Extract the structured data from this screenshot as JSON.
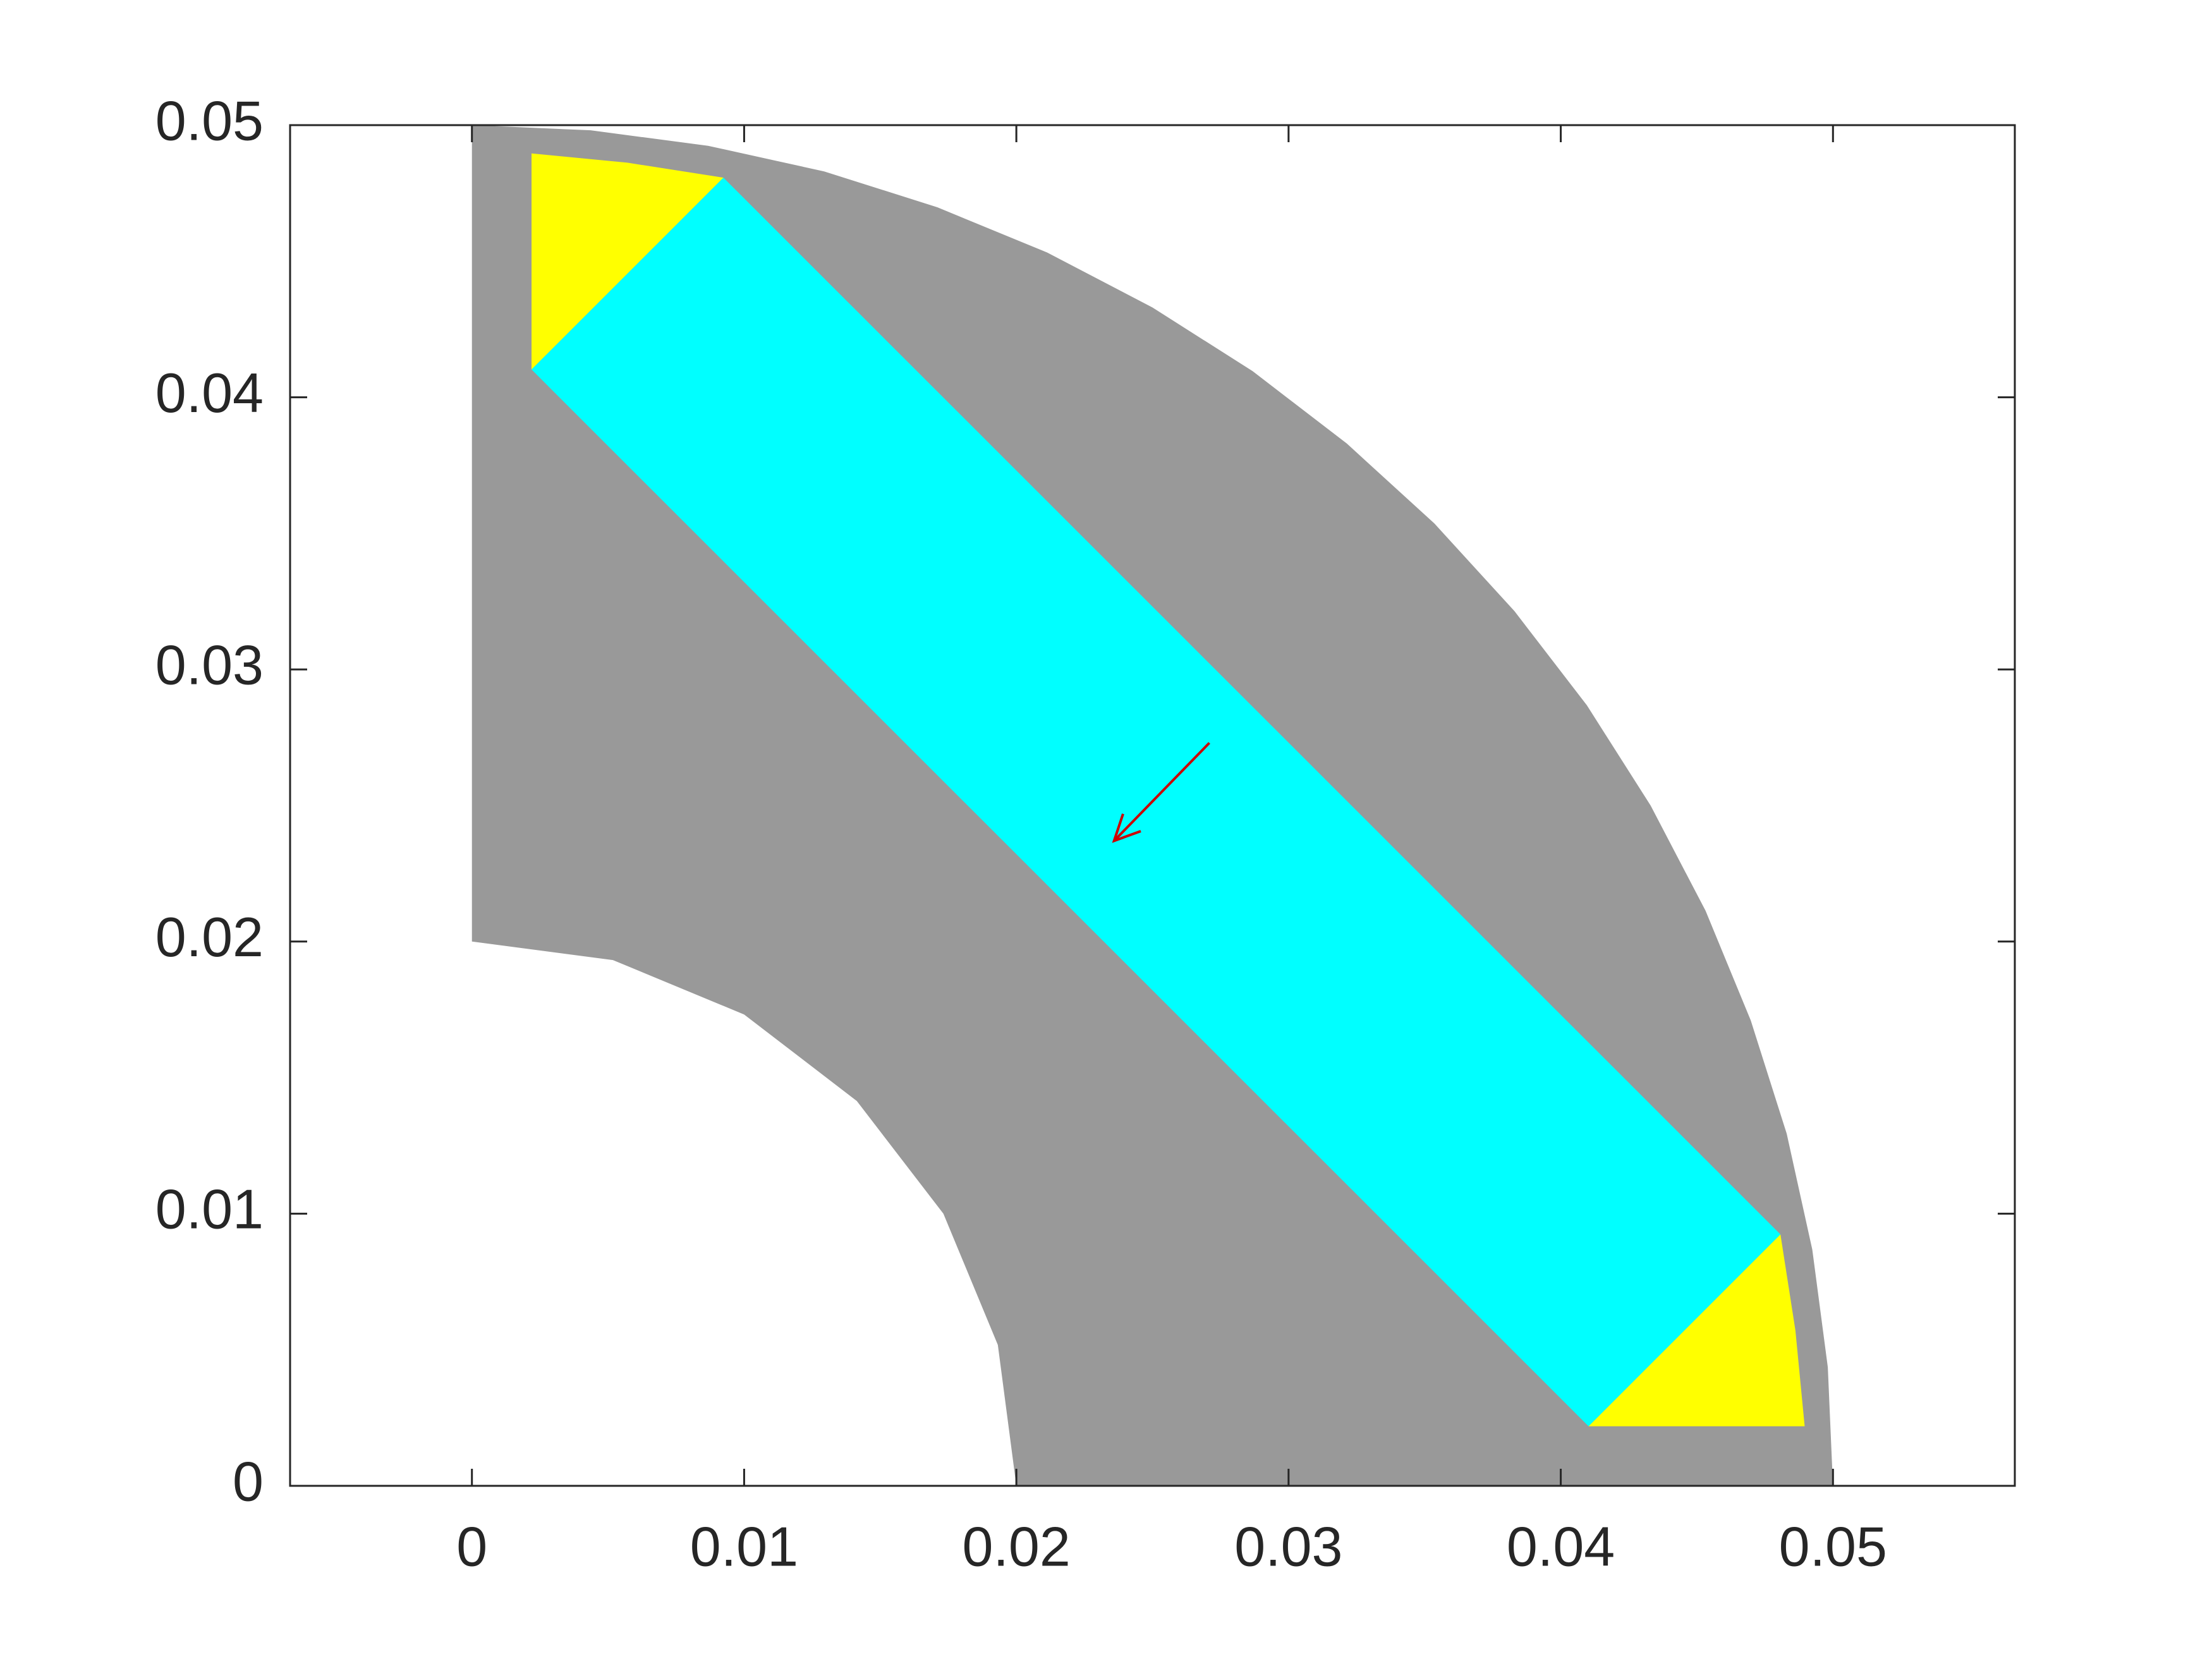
{
  "chart_data": {
    "type": "patch",
    "xlim": [
      -0.00668,
      0.05668
    ],
    "ylim": [
      0,
      0.05
    ],
    "xticks": [
      0,
      0.01,
      0.02,
      0.03,
      0.04,
      0.05
    ],
    "yticks": [
      0,
      0.01,
      0.02,
      0.03,
      0.04,
      0.05
    ],
    "patches": [
      {
        "color": "#999999",
        "x": [
          0,
          0,
          0.00436,
          0.00868,
          0.01294,
          0.0171,
          0.02113,
          0.025,
          0.02868,
          0.03214,
          0.03536,
          0.0383,
          0.04096,
          0.0433,
          0.04532,
          0.04698,
          0.0483,
          0.04924,
          0.04981,
          0.05,
          0.02,
          0.01932,
          0.01732,
          0.01414,
          0.01,
          0.00518
        ],
        "y": [
          0.02,
          0.05,
          0.04981,
          0.04924,
          0.0483,
          0.04698,
          0.04532,
          0.0433,
          0.04096,
          0.0383,
          0.03536,
          0.03214,
          0.02868,
          0.025,
          0.02113,
          0.0171,
          0.01294,
          0.00868,
          0.00436,
          0,
          0,
          0.00518,
          0.01,
          0.01414,
          0.01732,
          0.01932
        ]
      },
      {
        "color": "#ffff00",
        "x": [
          0.00219,
          0.00571,
          0.00924,
          0.00219
        ],
        "y": [
          0.04896,
          0.04862,
          0.04807,
          0.04102
        ]
      },
      {
        "color": "#ffff00",
        "x": [
          0.04807,
          0.04862,
          0.04896,
          0.04102
        ],
        "y": [
          0.00924,
          0.00571,
          0.00219,
          0.00219
        ]
      },
      {
        "color": "#00ffff",
        "x": [
          0.00924,
          0.00219,
          0.04102,
          0.04807
        ],
        "y": [
          0.04807,
          0.04102,
          0.00219,
          0.00924
        ]
      }
    ],
    "arrow": {
      "color": "#cc0000",
      "x": [
        0.02709,
        0.02359
      ],
      "y": [
        0.0273,
        0.0237
      ]
    }
  }
}
